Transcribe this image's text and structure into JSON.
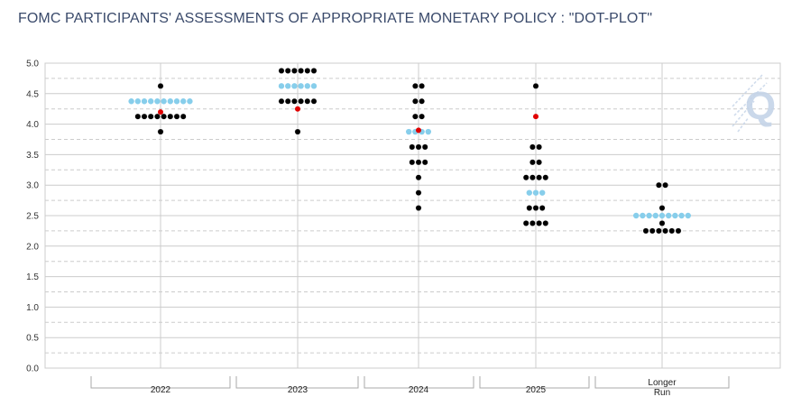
{
  "title": "FOMC PARTICIPANTS' ASSESSMENTS OF APPROPRIATE MONETARY POLICY : \"DOT-PLOT\"",
  "logo": {
    "letter": "Q"
  },
  "colors": {
    "participant": "#000000",
    "highlight": "#87ceeb",
    "median": "#e00000",
    "grid": "#cccccc",
    "logo": "#c5d4e8"
  },
  "chart_data": {
    "type": "scatter",
    "ylim": [
      0,
      5
    ],
    "yticks": [
      "0.0",
      "0.5",
      "1.0",
      "1.5",
      "2.0",
      "2.5",
      "3.0",
      "3.5",
      "4.0",
      "4.5",
      "5.0"
    ],
    "grid": true,
    "categories": [
      {
        "label": "2022",
        "dots": [
          {
            "y": 4.625,
            "n": 1,
            "color": "black"
          },
          {
            "y": 4.375,
            "n": 10,
            "color": "highlight"
          },
          {
            "y": 4.125,
            "n": 8,
            "color": "black"
          },
          {
            "y": 3.875,
            "n": 1,
            "color": "black"
          }
        ],
        "median": 4.2
      },
      {
        "label": "2023",
        "dots": [
          {
            "y": 4.875,
            "n": 6,
            "color": "black"
          },
          {
            "y": 4.625,
            "n": 6,
            "color": "highlight"
          },
          {
            "y": 4.375,
            "n": 6,
            "color": "black"
          },
          {
            "y": 3.875,
            "n": 1,
            "color": "black"
          }
        ],
        "median": 4.25
      },
      {
        "label": "2024",
        "dots": [
          {
            "y": 4.625,
            "n": 2,
            "color": "black"
          },
          {
            "y": 4.375,
            "n": 2,
            "color": "black"
          },
          {
            "y": 4.125,
            "n": 2,
            "color": "black"
          },
          {
            "y": 3.875,
            "n": 4,
            "color": "highlight"
          },
          {
            "y": 3.625,
            "n": 3,
            "color": "black"
          },
          {
            "y": 3.375,
            "n": 3,
            "color": "black"
          },
          {
            "y": 3.125,
            "n": 1,
            "color": "black"
          },
          {
            "y": 2.875,
            "n": 1,
            "color": "black"
          },
          {
            "y": 2.625,
            "n": 1,
            "color": "black"
          }
        ],
        "median": 3.9
      },
      {
        "label": "2025",
        "dots": [
          {
            "y": 4.625,
            "n": 1,
            "color": "black"
          },
          {
            "y": 3.625,
            "n": 2,
            "color": "black"
          },
          {
            "y": 3.375,
            "n": 2,
            "color": "black"
          },
          {
            "y": 3.125,
            "n": 4,
            "color": "black"
          },
          {
            "y": 2.875,
            "n": 3,
            "color": "highlight"
          },
          {
            "y": 2.625,
            "n": 3,
            "color": "black"
          },
          {
            "y": 2.375,
            "n": 4,
            "color": "black"
          }
        ],
        "median": 4.125
      },
      {
        "label": "Longer\nRun",
        "dots": [
          {
            "y": 3.0,
            "n": 2,
            "color": "black"
          },
          {
            "y": 2.625,
            "n": 1,
            "color": "black"
          },
          {
            "y": 2.5,
            "n": 9,
            "color": "highlight"
          },
          {
            "y": 2.375,
            "n": 1,
            "color": "black"
          },
          {
            "y": 2.25,
            "n": 6,
            "color": "black"
          }
        ],
        "median": null
      }
    ]
  }
}
